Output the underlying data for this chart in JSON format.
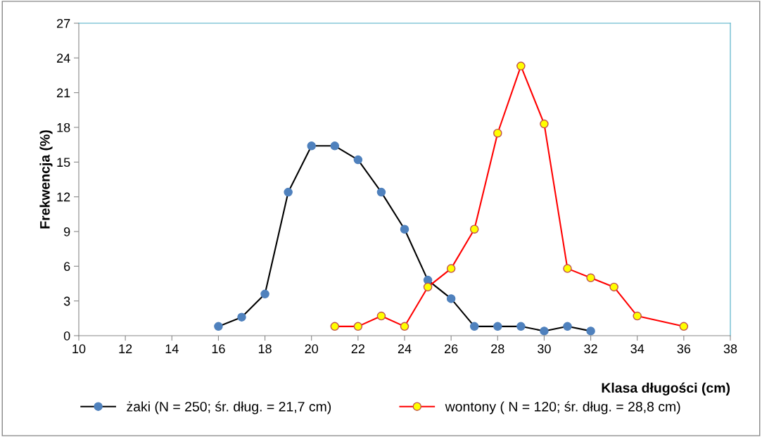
{
  "chart_data": {
    "type": "line",
    "xlabel": "Klasa długości (cm)",
    "ylabel": "Frekwencja (%)",
    "xlim": [
      10,
      38
    ],
    "xticks": [
      10,
      12,
      14,
      16,
      18,
      20,
      22,
      24,
      26,
      28,
      30,
      32,
      34,
      36,
      38
    ],
    "ylim": [
      0,
      27
    ],
    "yticks": [
      0,
      3,
      6,
      9,
      12,
      15,
      18,
      21,
      24,
      27
    ],
    "grid": false,
    "legend": "bottom",
    "marker": "circle",
    "line_style": "solid",
    "series": [
      {
        "name": "żaki (N = 250; śr. dług. = 21,7 cm)",
        "color": "#000000",
        "colors": [
          "#4f81bd",
          "#4f81bd",
          "#4f81bd",
          "#4f81bd",
          "#4f81bd",
          "#4f81bd",
          "#4f81bd",
          "#4f81bd",
          "#4f81bd",
          "#4f81bd",
          "#4f81bd",
          "#4f81bd",
          "#4f81bd",
          "#4f81bd",
          "#4f81bd",
          "#4f81bd",
          "#4f81bd"
        ],
        "x": [
          16,
          17,
          18,
          19,
          20,
          21,
          22,
          23,
          24,
          25,
          26,
          27,
          28,
          29,
          30,
          31,
          32
        ],
        "values": [
          0.8,
          1.6,
          3.6,
          12.4,
          16.4,
          16.4,
          15.2,
          12.4,
          9.2,
          4.8,
          3.2,
          0.8,
          0.8,
          0.8,
          0.4,
          0.8,
          0.4
        ]
      },
      {
        "name": "wontony ( N = 120; śr. dług. = 28,8 cm)",
        "color": "#ff0000",
        "colors": [
          "#ffff00",
          "#ffff00",
          "#ffff00",
          "#ffff00",
          "#ffff00",
          "#ffff00",
          "#ffff00",
          "#ffff00",
          "#ffff00",
          "#ffff00",
          "#ffff00",
          "#ffff00",
          "#ffff00",
          "#ffff00",
          "#ffff00"
        ],
        "x": [
          21,
          22,
          23,
          24,
          25,
          26,
          27,
          28,
          29,
          30,
          31,
          32,
          33,
          34,
          36
        ],
        "values": [
          0.8,
          0.8,
          1.7,
          0.8,
          4.2,
          5.8,
          9.2,
          17.5,
          23.3,
          18.3,
          5.8,
          5.0,
          4.2,
          1.7,
          0.8
        ]
      }
    ]
  }
}
